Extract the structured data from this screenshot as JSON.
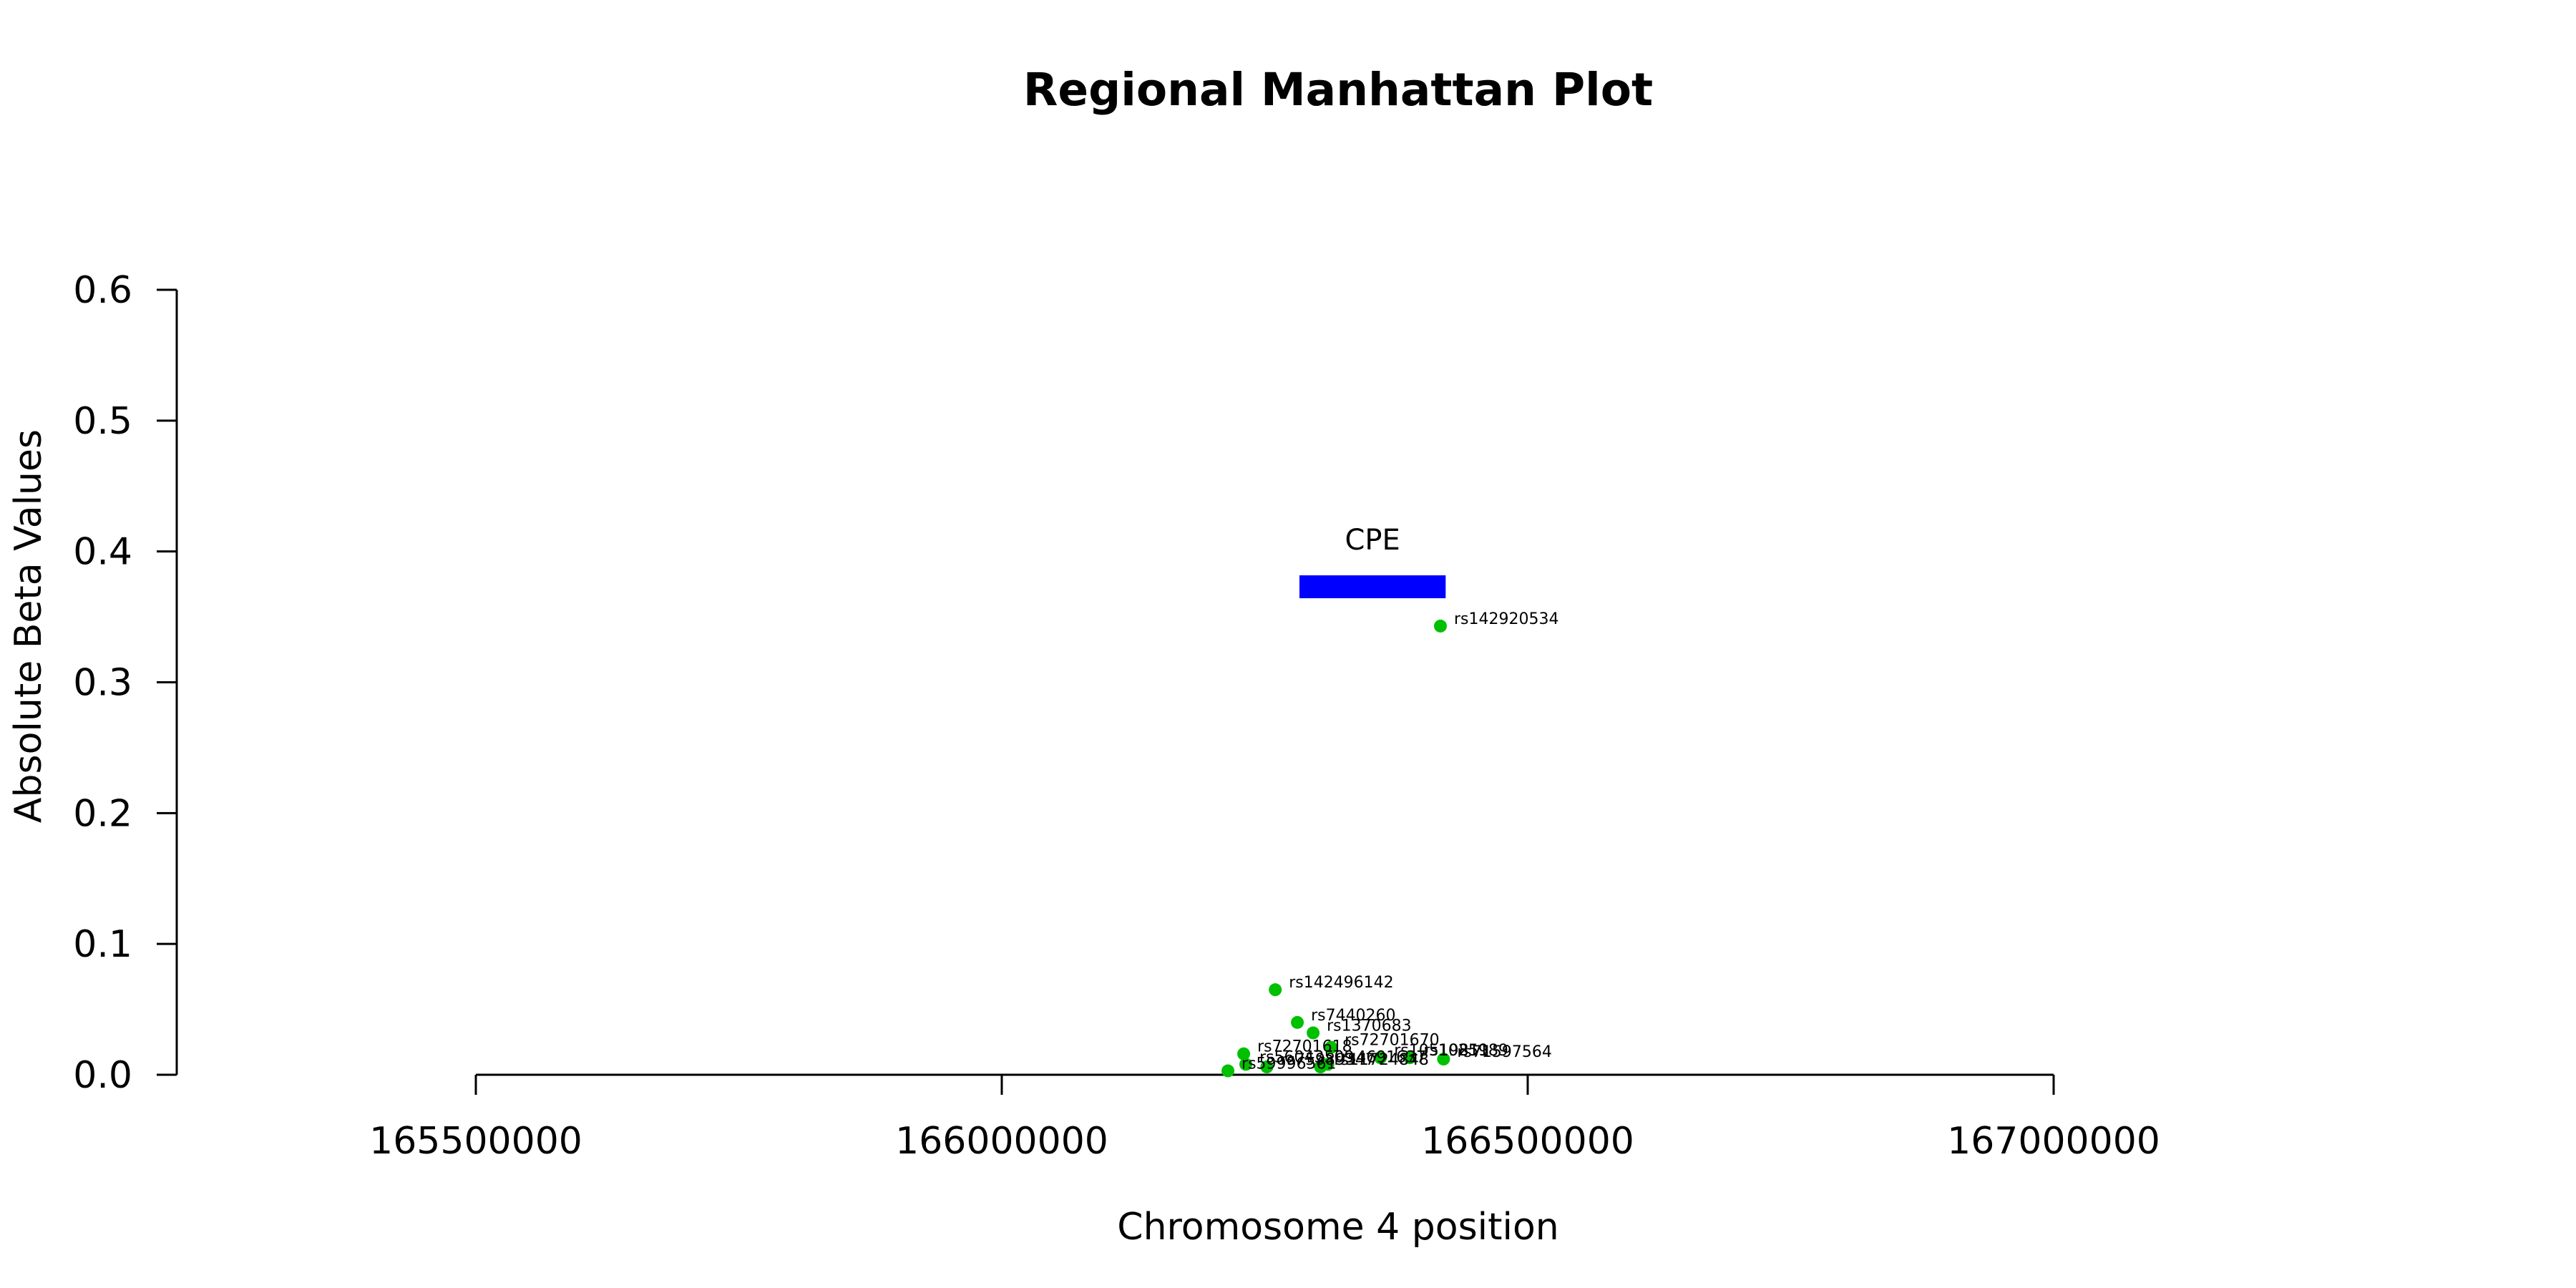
{
  "chart_data": {
    "type": "scatter",
    "title": "Regional Manhattan Plot",
    "xlabel": "Chromosome 4 position",
    "ylabel": "Absolute Beta Values",
    "xlim": [
      165500000,
      167000000
    ],
    "ylim": [
      0,
      0.6
    ],
    "xticks": [
      165500000,
      166000000,
      166500000,
      167000000
    ],
    "xtick_labels": [
      "165500000",
      "166000000",
      "166500000",
      "167000000"
    ],
    "yticks": [
      0,
      0.1,
      0.2,
      0.3,
      0.4,
      0.5,
      0.6
    ],
    "ytick_labels": [
      "0.0",
      "0.1",
      "0.2",
      "0.3",
      "0.4",
      "0.5",
      "0.6"
    ],
    "grid": false,
    "point_color": "#00C000",
    "gene": {
      "name": "CPE",
      "start": 166283000,
      "end": 166422000,
      "y": 0.373,
      "color": "#0000FF"
    },
    "points": [
      {
        "x": 166417000,
        "y": 0.343,
        "label": "rs142920534"
      },
      {
        "x": 166260000,
        "y": 0.065,
        "label": "rs142496142"
      },
      {
        "x": 166281000,
        "y": 0.04,
        "label": "rs7440260"
      },
      {
        "x": 166296000,
        "y": 0.032,
        "label": "rs1370683"
      },
      {
        "x": 166313000,
        "y": 0.021,
        "label": "rs72701670"
      },
      {
        "x": 166230000,
        "y": 0.016,
        "label": "rs72701618"
      },
      {
        "x": 166360000,
        "y": 0.013,
        "label": "rs10519811"
      },
      {
        "x": 166388000,
        "y": 0.013,
        "label": "rs1025989"
      },
      {
        "x": 166420000,
        "y": 0.012,
        "label": "rs71597564"
      },
      {
        "x": 166232000,
        "y": 0.008,
        "label": "rs56043509"
      },
      {
        "x": 166310000,
        "y": 0.008,
        "label": "rs4691637"
      },
      {
        "x": 166252000,
        "y": 0.006,
        "label": "rs75989347"
      },
      {
        "x": 166303000,
        "y": 0.006,
        "label": "rs11724848"
      },
      {
        "x": 166215000,
        "y": 0.003,
        "label": "rs59996561"
      }
    ]
  }
}
